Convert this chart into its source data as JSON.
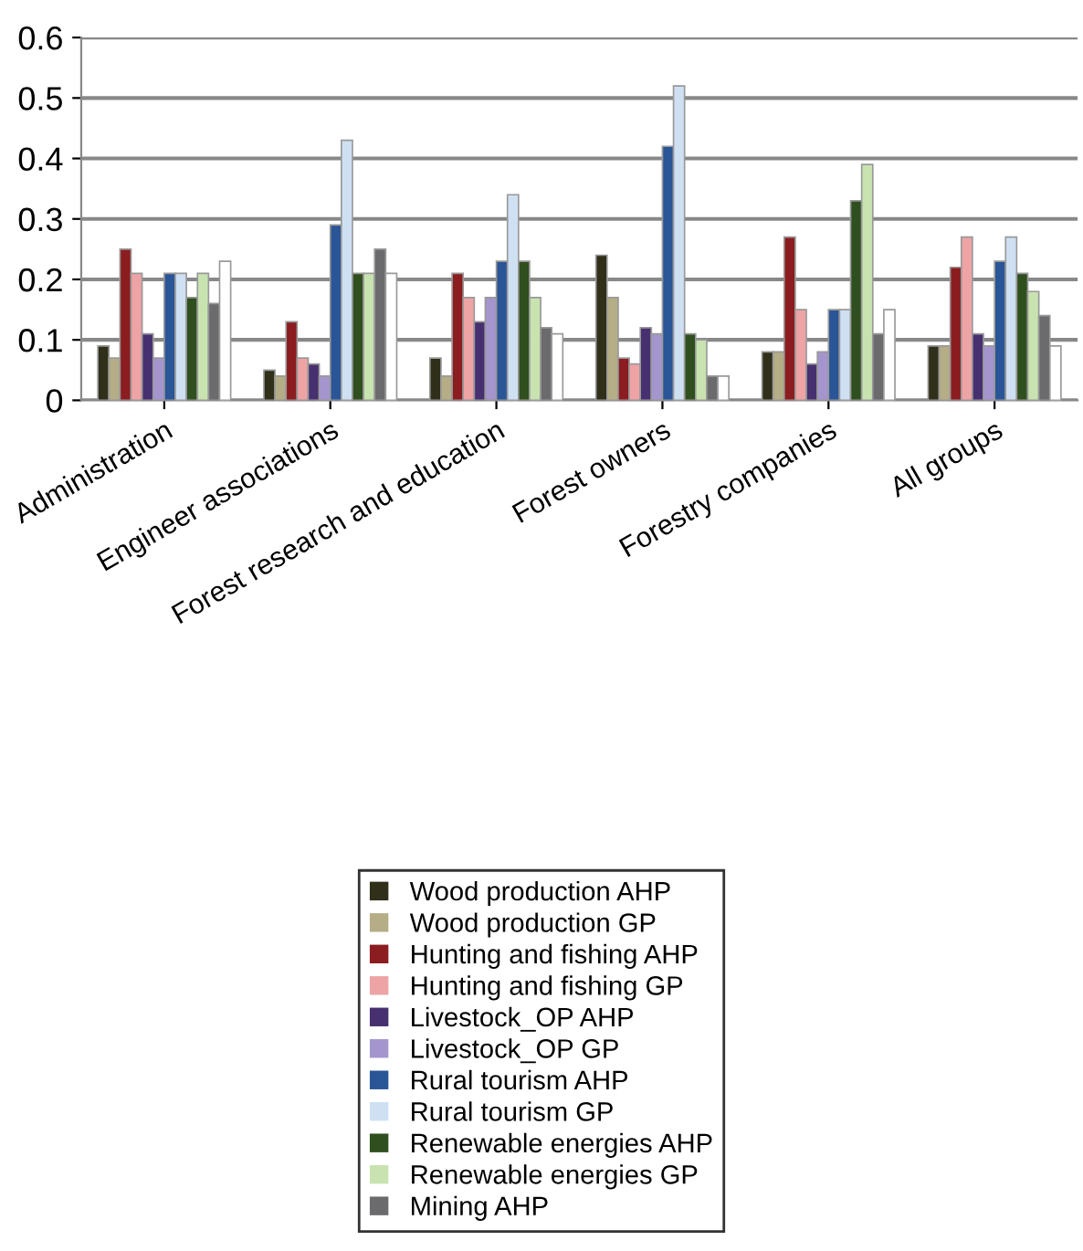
{
  "chart_data": {
    "type": "bar",
    "categories": [
      "Administration",
      "Engineer associations",
      "Forest research and education",
      "Forest owners",
      "Forestry companies",
      "All groups"
    ],
    "series": [
      {
        "name": "Wood production AHP",
        "color": "#2f2f1a",
        "values": [
          0.09,
          0.05,
          0.07,
          0.24,
          0.08,
          0.09
        ]
      },
      {
        "name": "Wood production GP",
        "color": "#b4ad85",
        "values": [
          0.07,
          0.04,
          0.04,
          0.17,
          0.08,
          0.09
        ]
      },
      {
        "name": "Hunting and fishing AHP",
        "color": "#8b1c1f",
        "values": [
          0.25,
          0.13,
          0.21,
          0.07,
          0.27,
          0.22
        ]
      },
      {
        "name": "Hunting and fishing GP",
        "color": "#eea3a5",
        "values": [
          0.21,
          0.07,
          0.17,
          0.06,
          0.15,
          0.27
        ]
      },
      {
        "name": "Livestock_OP AHP",
        "color": "#47306f",
        "values": [
          0.11,
          0.06,
          0.13,
          0.12,
          0.06,
          0.11
        ]
      },
      {
        "name": "Livestock_OP GP",
        "color": "#a595cf",
        "values": [
          0.07,
          0.04,
          0.17,
          0.11,
          0.08,
          0.09
        ]
      },
      {
        "name": "Rural tourism AHP",
        "color": "#2a5597",
        "values": [
          0.21,
          0.29,
          0.23,
          0.42,
          0.15,
          0.23
        ]
      },
      {
        "name": "Rural tourism GP",
        "color": "#cfe0f3",
        "values": [
          0.21,
          0.43,
          0.34,
          0.52,
          0.15,
          0.27
        ]
      },
      {
        "name": "Renewable energies AHP",
        "color": "#2f4f1f",
        "values": [
          0.17,
          0.21,
          0.23,
          0.11,
          0.33,
          0.21
        ]
      },
      {
        "name": "Renewable energies GP",
        "color": "#c8e3b0",
        "values": [
          0.21,
          0.21,
          0.17,
          0.1,
          0.39,
          0.18
        ]
      },
      {
        "name": "Mining AHP",
        "color": "#6b6b6e",
        "values": [
          0.16,
          0.25,
          0.12,
          0.04,
          0.11,
          0.14
        ]
      },
      {
        "color": "#ffffff",
        "values": [
          0.23,
          0.21,
          0.11,
          0.04,
          0.15,
          0.09
        ]
      }
    ],
    "ylim": [
      0,
      0.6
    ],
    "yticks": [
      0,
      0.1,
      0.2,
      0.3,
      0.4,
      0.5,
      0.6
    ],
    "grid": "y",
    "legend": "bottom"
  }
}
